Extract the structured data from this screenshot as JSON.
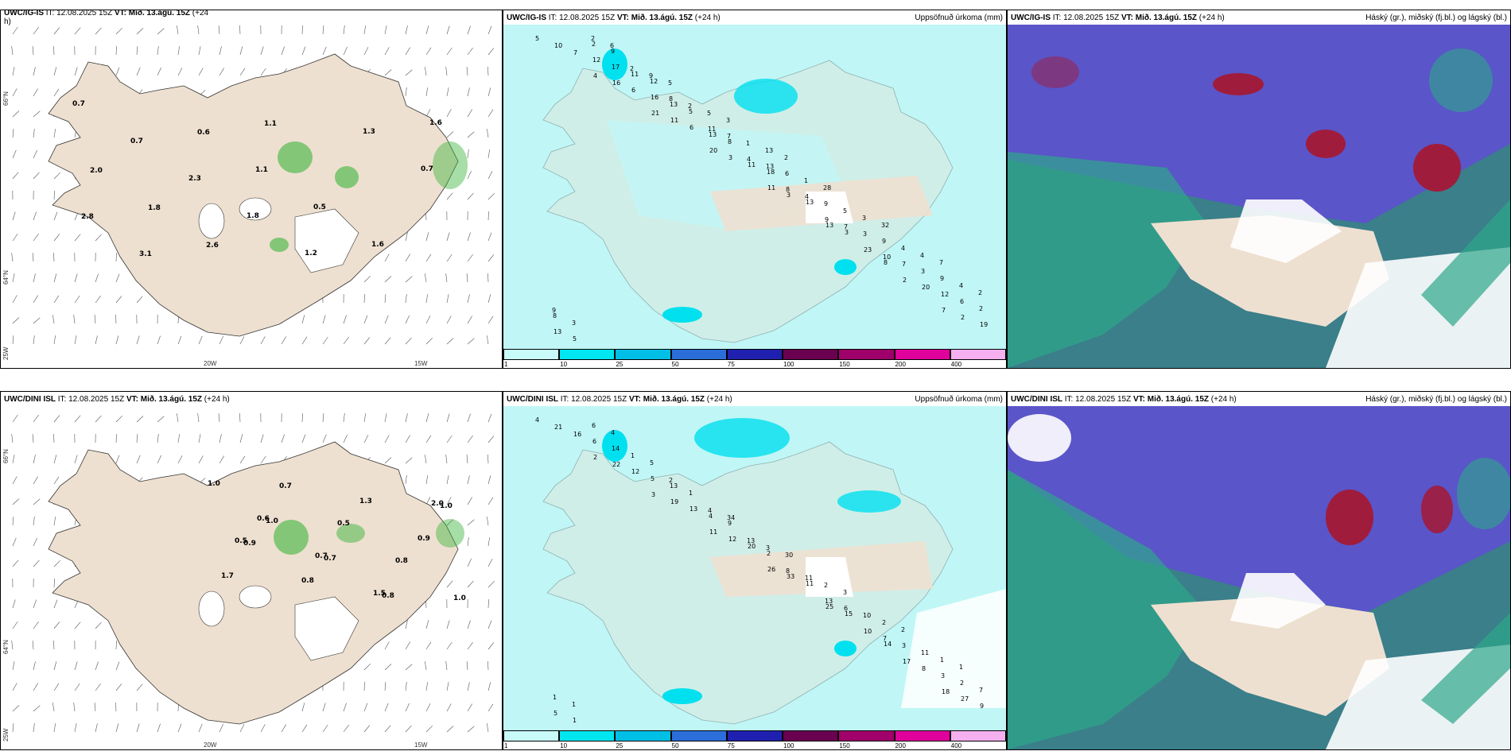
{
  "rows": [
    {
      "model": "UWC/IG-IS",
      "left_header": {
        "model": "UWC/IG-IS",
        "it_text": "IT: 12.08.2025 15Z",
        "vt_text": "VT: Mið. 13.ágú. 15Z",
        "lead_text": "(+24",
        "lead_cont": "h)"
      },
      "left_labels": [
        "0.7",
        "0.7",
        "2.3",
        "1.8",
        "1.2",
        "1.3",
        "0.7",
        "2.8",
        "3.1",
        "0.6",
        "1.1",
        "0.5",
        "1.6",
        "1.6",
        "2.0",
        "1.8",
        "2.6",
        "1.1"
      ],
      "mid_labels": [
        "5",
        "4",
        "21",
        "20",
        "11",
        "13",
        "8",
        "7",
        "10",
        "16",
        "11",
        "3",
        "3",
        "3",
        "2",
        "2",
        "7",
        "6",
        "6",
        "11",
        "13",
        "23",
        "20",
        "19",
        "12",
        "16",
        "13",
        "18",
        "9",
        "10",
        "12",
        "13",
        "17",
        "13",
        "8",
        "8",
        "7",
        "7",
        "6",
        "5",
        "11",
        "5",
        "4",
        "4",
        "3",
        "3",
        "2",
        "2",
        "12",
        "11",
        "13",
        "9",
        "9",
        "9",
        "8",
        "9",
        "8",
        "7",
        "6",
        "5",
        "4",
        "4",
        "3",
        "2",
        "2",
        "1",
        "1",
        "3",
        "4",
        "2",
        "2",
        "9",
        "5",
        "13",
        "28",
        "32",
        "7",
        "9",
        "6",
        "5",
        "3",
        "2"
      ],
      "right_header_title": "Háský (gr.), miðský (fj.bl.) og lágský (bl.)"
    },
    {
      "model": "UWC/DINI ISL",
      "left_header": {
        "model": "UWC/DINI ISL",
        "it_text": "IT: 12.08.2025 15Z",
        "vt_text": "VT: Mið. 13.ágú. 15Z",
        "lead_text": "(+24 h)",
        "lead_cont": ""
      },
      "left_labels": [
        "1.0",
        "1.0",
        "0.7",
        "0.8",
        "1.0",
        "0.9",
        "0.8",
        "1.3",
        "0.9",
        "1.7",
        "0.7",
        "0.5",
        "0.8",
        "1.0",
        "0.6",
        "0.7",
        "1.5",
        "2.0",
        "0.5"
      ],
      "mid_labels": [
        "4",
        "2",
        "3",
        "11",
        "26",
        "25",
        "14",
        "18",
        "21",
        "22",
        "19",
        "12",
        "33",
        "15",
        "17",
        "27",
        "16",
        "12",
        "13",
        "20",
        "11",
        "10",
        "8",
        "9",
        "6",
        "5",
        "4",
        "2",
        "13",
        "7",
        "3",
        "5",
        "14",
        "13",
        "9",
        "8",
        "6",
        "3",
        "2",
        "1",
        "1",
        "1",
        "13",
        "11",
        "10",
        "11",
        "7",
        "6",
        "5",
        "4",
        "3",
        "2",
        "2",
        "1",
        "1",
        "4",
        "2",
        "34",
        "30",
        "3",
        "2",
        "1",
        "1"
      ],
      "right_header_title": "Háský (gr.), miðský (fj.bl.) og lágský (bl.)"
    }
  ],
  "panel_titles": {
    "precip_title": "Uppsöfnuð úrkoma (mm)",
    "it_text": "IT: 12.08.2025 15Z",
    "vt_text": "VT: Mið. 13.ágú. 15Z",
    "lead_text": "(+24 h)"
  },
  "axis_labels": {
    "lat_66": "66°N",
    "lat_64": "64°N",
    "lon_20": "20W",
    "lon_15": "15W",
    "lon_25": "25W"
  },
  "colorbar": {
    "ticks": [
      "1",
      "10",
      "25",
      "50",
      "75",
      "100",
      "150",
      "200",
      "400"
    ],
    "colors": [
      "#c8fafa",
      "#00e6f0",
      "#00bfe6",
      "#2b6ed9",
      "#2020b0",
      "#6a0050",
      "#a0006a",
      "#e0009c",
      "#f6b0f0"
    ]
  },
  "colors": {
    "land": "#eee0d0",
    "ocean_precip": "#c0f6f6",
    "precip_mid": "#00e0ef",
    "cloud_high": "#5a55c8",
    "cloud_mid_green": "#2da68a",
    "cloud_red": "#a01c3c",
    "green_precip": "#3cb43c"
  }
}
